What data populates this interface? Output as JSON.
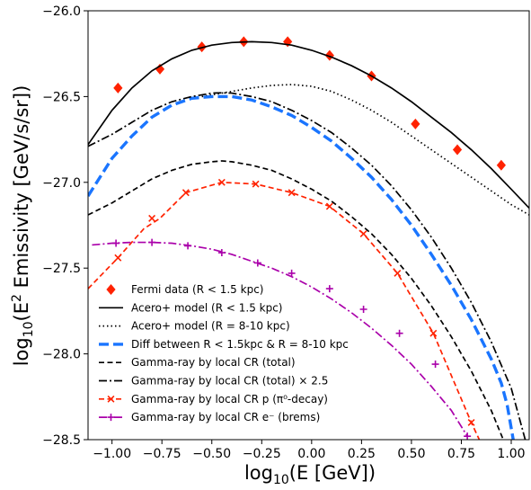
{
  "chart_data": {
    "type": "line",
    "xlabel": "log10(E [GeV])",
    "ylabel": "log10(E2 Emissivity [GeV/s/sr])",
    "xlim": [
      -1.12,
      1.09
    ],
    "ylim": [
      -28.5,
      -26.0
    ],
    "xticks": [
      -1.0,
      -0.75,
      -0.5,
      -0.25,
      0.0,
      0.25,
      0.5,
      0.75,
      1.0
    ],
    "xtick_labels": [
      "−1.00",
      "−0.75",
      "−0.50",
      "−0.25",
      "0.00",
      "0.25",
      "0.50",
      "0.75",
      "1.00"
    ],
    "yticks": [
      -26.0,
      -26.5,
      -27.0,
      -27.5,
      -28.0,
      -28.5
    ],
    "ytick_labels": [
      "−26.0",
      "−26.5",
      "−27.0",
      "−27.5",
      "−28.0",
      "−28.5"
    ],
    "grid": false,
    "legend_position": "bottom-left",
    "series": [
      {
        "name": "Fermi data (R < 1.5 kpc)",
        "style": "markers",
        "marker": "diamond",
        "color": "#ff2200",
        "x": [
          -0.97,
          -0.76,
          -0.55,
          -0.34,
          -0.12,
          0.09,
          0.3,
          0.52,
          0.73,
          0.95
        ],
        "y": [
          -26.45,
          -26.34,
          -26.21,
          -26.18,
          -26.18,
          -26.26,
          -26.38,
          -26.66,
          -26.81,
          -26.9
        ]
      },
      {
        "name": "Acero+ model (R < 1.5 kpc)",
        "style": "solid",
        "color": "#000000",
        "x": [
          -1.12,
          -1.0,
          -0.9,
          -0.8,
          -0.7,
          -0.6,
          -0.5,
          -0.4,
          -0.3,
          -0.2,
          -0.1,
          0.0,
          0.1,
          0.2,
          0.3,
          0.4,
          0.5,
          0.6,
          0.7,
          0.8,
          0.9,
          1.0,
          1.09
        ],
        "y": [
          -26.78,
          -26.58,
          -26.45,
          -26.35,
          -26.28,
          -26.23,
          -26.2,
          -26.185,
          -26.18,
          -26.185,
          -26.2,
          -26.23,
          -26.27,
          -26.32,
          -26.38,
          -26.45,
          -26.53,
          -26.62,
          -26.71,
          -26.81,
          -26.92,
          -27.04,
          -27.15
        ]
      },
      {
        "name": "Acero+ model (R = 8-10 kpc)",
        "style": "dotted",
        "color": "#000000",
        "x": [
          -0.55,
          -0.4,
          -0.3,
          -0.2,
          -0.1,
          0.0,
          0.1,
          0.2,
          0.3,
          0.4,
          0.5,
          0.6,
          0.7,
          0.8,
          0.9,
          1.0,
          1.09
        ],
        "y": [
          -26.5,
          -26.47,
          -26.45,
          -26.435,
          -26.43,
          -26.44,
          -26.47,
          -26.52,
          -26.58,
          -26.65,
          -26.73,
          -26.81,
          -26.89,
          -26.97,
          -27.05,
          -27.13,
          -27.19
        ]
      },
      {
        "name": "Diff between R < 1.5kpc & R = 8-10 kpc",
        "style": "dashed-thick",
        "color": "#1a75ff",
        "x": [
          -1.12,
          -1.0,
          -0.9,
          -0.8,
          -0.7,
          -0.6,
          -0.5,
          -0.4,
          -0.3,
          -0.2,
          -0.1,
          0.0,
          0.1,
          0.2,
          0.3,
          0.4,
          0.5,
          0.6,
          0.7,
          0.8,
          0.9,
          0.95,
          0.98,
          1.01
        ],
        "y": [
          -27.08,
          -26.86,
          -26.73,
          -26.62,
          -26.55,
          -26.51,
          -26.5,
          -26.5,
          -26.52,
          -26.56,
          -26.61,
          -26.68,
          -26.76,
          -26.86,
          -26.97,
          -27.1,
          -27.25,
          -27.42,
          -27.6,
          -27.8,
          -28.03,
          -28.17,
          -28.3,
          -28.5
        ]
      },
      {
        "name": "Gamma-ray by local CR (total)",
        "style": "dashed",
        "color": "#000000",
        "x": [
          -1.12,
          -1.0,
          -0.9,
          -0.8,
          -0.7,
          -0.6,
          -0.5,
          -0.45,
          -0.4,
          -0.3,
          -0.2,
          -0.1,
          0.0,
          0.1,
          0.2,
          0.3,
          0.4,
          0.5,
          0.6,
          0.7,
          0.8,
          0.9,
          0.96
        ],
        "y": [
          -27.19,
          -27.12,
          -27.05,
          -26.98,
          -26.93,
          -26.895,
          -26.88,
          -26.875,
          -26.88,
          -26.9,
          -26.93,
          -26.98,
          -27.04,
          -27.11,
          -27.2,
          -27.3,
          -27.42,
          -27.56,
          -27.72,
          -27.9,
          -28.1,
          -28.33,
          -28.5
        ]
      },
      {
        "name": "Gamma-ray by local CR (total) × 2.5",
        "style": "dashdot",
        "color": "#000000",
        "x": [
          -1.12,
          -1.0,
          -0.9,
          -0.8,
          -0.7,
          -0.6,
          -0.5,
          -0.45,
          -0.4,
          -0.3,
          -0.2,
          -0.1,
          0.0,
          0.1,
          0.2,
          0.3,
          0.4,
          0.5,
          0.6,
          0.7,
          0.8,
          0.9,
          1.0,
          1.07
        ],
        "y": [
          -26.79,
          -26.72,
          -26.65,
          -26.58,
          -26.53,
          -26.5,
          -26.48,
          -26.478,
          -26.48,
          -26.5,
          -26.53,
          -26.58,
          -26.64,
          -26.71,
          -26.8,
          -26.9,
          -27.02,
          -27.16,
          -27.32,
          -27.5,
          -27.7,
          -27.93,
          -28.2,
          -28.5
        ]
      },
      {
        "name": "Gamma-ray by local CR p (π⁰-decay)",
        "style": "dashed-markers",
        "marker": "x",
        "color": "#ff2200",
        "x": [
          -1.12,
          -0.97,
          -0.84,
          -0.76,
          -0.63,
          -0.45,
          -0.28,
          -0.1,
          0.09,
          0.26,
          0.43,
          0.61,
          0.8,
          0.84
        ],
        "y": [
          -27.62,
          -27.44,
          -27.27,
          -27.21,
          -27.06,
          -27.0,
          -27.01,
          -27.06,
          -27.14,
          -27.3,
          -27.53,
          -27.88,
          -28.4,
          -28.5
        ],
        "marker_x": [
          -0.97,
          -0.8,
          -0.63,
          -0.45,
          -0.28,
          -0.1,
          0.09,
          0.26,
          0.43,
          0.61,
          0.8
        ],
        "marker_y": [
          -27.44,
          -27.21,
          -27.06,
          -27.0,
          -27.01,
          -27.06,
          -27.14,
          -27.3,
          -27.53,
          -27.88,
          -28.4
        ]
      },
      {
        "name": "Gamma-ray by local CR e⁻ (brems)",
        "style": "dashdot-markers",
        "marker": "plus",
        "color": "#aa00aa",
        "x": [
          -1.1,
          -1.0,
          -0.9,
          -0.8,
          -0.7,
          -0.6,
          -0.5,
          -0.4,
          -0.3,
          -0.2,
          -0.1,
          0.0,
          0.1,
          0.2,
          0.3,
          0.4,
          0.5,
          0.6,
          0.7,
          0.78
        ],
        "y": [
          -27.365,
          -27.355,
          -27.35,
          -27.35,
          -27.355,
          -27.37,
          -27.39,
          -27.42,
          -27.46,
          -27.5,
          -27.55,
          -27.61,
          -27.68,
          -27.76,
          -27.85,
          -27.95,
          -28.06,
          -28.19,
          -28.33,
          -28.48
        ],
        "marker_x": [
          -0.98,
          -0.8,
          -0.62,
          -0.45,
          -0.27,
          -0.1,
          0.09,
          0.26,
          0.44,
          0.62,
          0.78
        ],
        "marker_y": [
          -27.355,
          -27.35,
          -27.37,
          -27.41,
          -27.47,
          -27.53,
          -27.62,
          -27.74,
          -27.88,
          -28.06,
          -28.48
        ]
      }
    ]
  }
}
